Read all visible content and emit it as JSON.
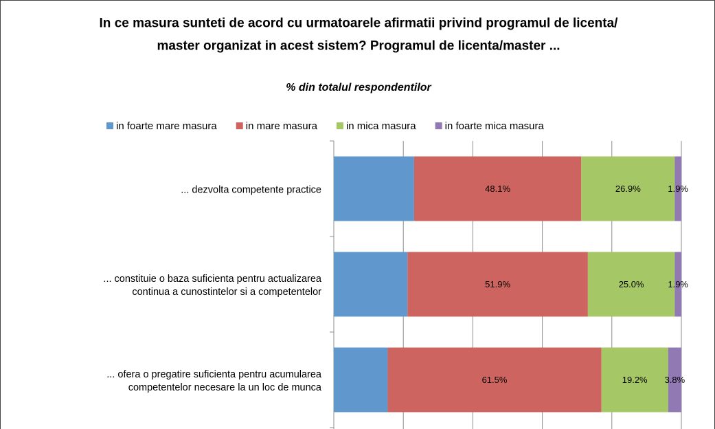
{
  "chart_data": {
    "type": "stacked_bar_horizontal",
    "title": "In ce masura sunteti de acord cu urmatoarele afirmatii privind programul de licenta/\nmaster organizat in acest sistem? Programul de licenta/master ...",
    "subtitle": "% din totalul respondentilor",
    "categories": [
      "... dezvolta competente practice",
      "... constituie o baza suficienta pentru actualizarea\ncontinua a cunostintelor si a competentelor",
      "... ofera o pregatire suficienta pentru acumularea\ncompetentelor necesare la un loc de munca"
    ],
    "series": [
      {
        "name": "in foarte mare masura",
        "color": "#6097cd",
        "values": [
          23.1,
          21.2,
          15.5
        ],
        "value_labels": [
          null,
          null,
          null
        ]
      },
      {
        "name": "in mare masura",
        "color": "#cd645f",
        "values": [
          48.1,
          51.9,
          61.5
        ],
        "value_labels": [
          "48.1%",
          "51.9%",
          "61.5%"
        ]
      },
      {
        "name": "in mica masura",
        "color": "#a6c765",
        "values": [
          26.9,
          25.0,
          19.2
        ],
        "value_labels": [
          "26.9%",
          "25.0%",
          "19.2%"
        ]
      },
      {
        "name": "in foarte mica masura",
        "color": "#9179b3",
        "values": [
          1.9,
          1.9,
          3.8
        ],
        "value_labels": [
          "1.9%",
          "1.9%",
          "3.8%"
        ]
      }
    ],
    "xlim": [
      0,
      100
    ],
    "xticks": [
      0,
      20,
      40,
      60,
      80,
      100
    ],
    "grid": true,
    "legend": "top"
  }
}
